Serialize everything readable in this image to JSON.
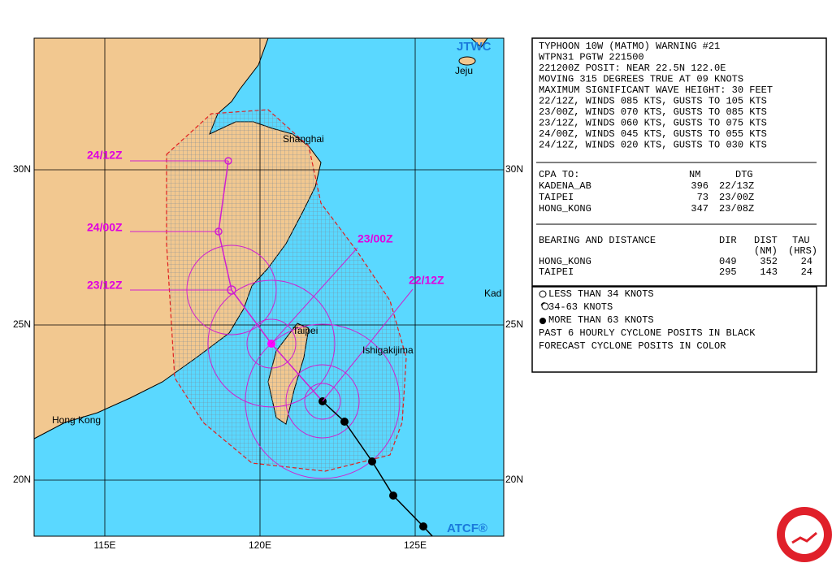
{
  "map": {
    "labels": {
      "jtwc": "JTWC",
      "jeju": "Jeju",
      "shanghai": "Shanghai",
      "taipei": "Taipei",
      "ishigakijima": "Ishigakijima",
      "hong_kong": "Hong Kong",
      "kadena": "Kad",
      "atcf": "ATCF®"
    },
    "lat_ticks": [
      {
        "value": 30,
        "label": "30N"
      },
      {
        "value": 25,
        "label": "25N"
      },
      {
        "value": 20,
        "label": "20N"
      }
    ],
    "lon_ticks": [
      {
        "value": 115,
        "label": "115E"
      },
      {
        "value": 120,
        "label": "120E"
      },
      {
        "value": 125,
        "label": "125E"
      }
    ],
    "forecast_labels": [
      "22/12Z",
      "23/00Z",
      "23/12Z",
      "24/00Z",
      "24/12Z"
    ]
  },
  "warning": {
    "lines": [
      "TYPHOON 10W (MATMO) WARNING #21",
      "WTPN31 PGTW 221500",
      "221200Z POSIT: NEAR 22.5N 122.0E",
      "MOVING 315 DEGREES TRUE AT 09 KNOTS",
      "MAXIMUM SIGNIFICANT WAVE HEIGHT: 30 FEET",
      "22/12Z, WINDS 085 KTS, GUSTS TO 105 KTS",
      "23/00Z, WINDS 070 KTS, GUSTS TO 085 KTS",
      "23/12Z, WINDS 060 KTS, GUSTS TO 075 KTS",
      "24/00Z, WINDS 045 KTS, GUSTS TO 055 KTS",
      "24/12Z, WINDS 020 KTS, GUSTS TO 030 KTS"
    ],
    "cpa": {
      "header": [
        "CPA TO:",
        "NM",
        "DTG"
      ],
      "rows": [
        [
          "KADENA_AB",
          "396",
          "22/13Z"
        ],
        [
          "TAIPEI",
          "73",
          "23/00Z"
        ],
        [
          "HONG_KONG",
          "347",
          "23/08Z"
        ]
      ]
    },
    "bearing": {
      "header": [
        "BEARING AND DISTANCE",
        "DIR",
        "DIST",
        "TAU"
      ],
      "units": [
        "(NM)",
        "(HRS)"
      ],
      "rows": [
        [
          "HONG_KONG",
          "049",
          "352",
          "24"
        ],
        [
          "TAIPEI",
          "295",
          "143",
          "24"
        ]
      ]
    }
  },
  "legend": {
    "items": [
      "LESS THAN 34 KNOTS",
      "34-63 KNOTS",
      "MORE THAN 63 KNOTS",
      "PAST 6 HOURLY CYCLONE POSITS IN BLACK",
      "FORECAST CYCLONE POSITS IN COLOR"
    ]
  }
}
